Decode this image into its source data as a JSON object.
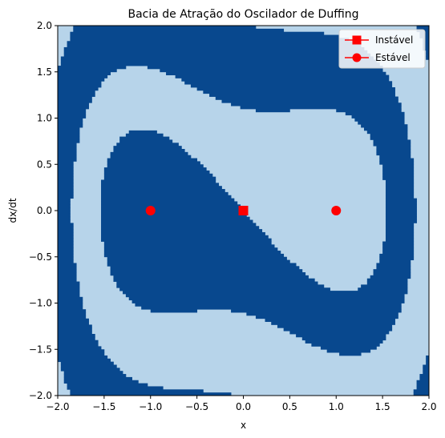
{
  "chart_data": {
    "type": "heatmap",
    "title": "Bacia de Atração do Oscilador de Duffing",
    "xlabel": "x",
    "ylabel": "dx/dt",
    "xlim": [
      -2.0,
      2.0
    ],
    "ylim": [
      -2.0,
      2.0
    ],
    "xticks": [
      -2.0,
      -1.5,
      -1.0,
      -0.5,
      0.0,
      0.5,
      1.0,
      1.5,
      2.0
    ],
    "yticks": [
      -2.0,
      -1.5,
      -1.0,
      -0.5,
      0.0,
      0.5,
      1.0,
      1.5,
      2.0
    ],
    "xtick_labels": [
      "−2.0",
      "−1.5",
      "−1.0",
      "−0.5",
      "0.0",
      "0.5",
      "1.0",
      "1.5",
      "2.0"
    ],
    "ytick_labels": [
      "−2.0",
      "−1.5",
      "−1.0",
      "−0.5",
      "0.0",
      "0.5",
      "1.0",
      "1.5",
      "2.0"
    ],
    "basin_colors": {
      "left_attractor": "#08488e",
      "right_attractor": "#b7d4ea"
    },
    "grid": false,
    "legend_position": "top-right",
    "series": [
      {
        "name": "Instável",
        "marker": "square",
        "color": "#ff0000",
        "points": [
          [
            0.0,
            0.0
          ]
        ]
      },
      {
        "name": "Estável",
        "marker": "circle",
        "color": "#ff0000",
        "points": [
          [
            -1.0,
            0.0
          ],
          [
            1.0,
            0.0
          ]
        ]
      }
    ]
  }
}
